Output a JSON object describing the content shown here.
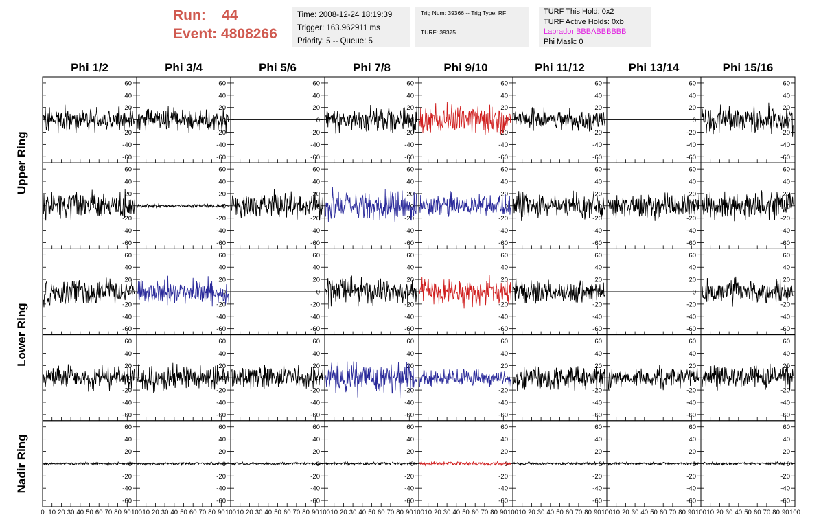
{
  "header": {
    "run_label": "Run:",
    "run_value": "44",
    "event_label": "Event:",
    "event_value": "4808266",
    "time": "Time: 2008-12-24 18:19:39",
    "trigger": "Trigger: 163.962911 ms",
    "priority": "Priority: 5 -- Queue: 5",
    "trig_num": "Trig Num: 39366 -- Trig Type: RF",
    "turf": "TURF: 39375",
    "turf_hold": "TURF This Hold: 0x2",
    "turf_active": "TURF Active Holds: 0xb",
    "labrador": "Labrador BBBABBBBBB",
    "phi_mask": "Phi Mask: 0"
  },
  "colors": {
    "header_text": "#d05a50",
    "labrador": "#e020e0",
    "trace_default": "#000000",
    "trace_red": "#d02020",
    "trace_blue": "#2a2a9a",
    "info_box_bg": "#efefef"
  },
  "chart_data": {
    "type": "line",
    "columns": [
      "Phi 1/2",
      "Phi 3/4",
      "Phi 5/6",
      "Phi 7/8",
      "Phi 9/10",
      "Phi 11/12",
      "Phi 13/14",
      "Phi 15/16"
    ],
    "rows": [
      "Upper Ring",
      "Upper Ring",
      "Lower Ring",
      "Lower Ring",
      "Nadir Ring"
    ],
    "row_labels": [
      "Upper Ring",
      "Lower Ring",
      "Nadir Ring"
    ],
    "xlim": [
      0,
      100
    ],
    "ylim": [
      -70,
      70
    ],
    "x_ticks": [
      0,
      10,
      20,
      30,
      40,
      50,
      60,
      70,
      80,
      90,
      100
    ],
    "y_ticks": [
      -60,
      -40,
      -20,
      0,
      20,
      40,
      60
    ],
    "grid": false,
    "panels": [
      [
        {
          "color": "black",
          "amp": 14
        },
        {
          "color": "black",
          "amp": 13
        },
        {
          "color": "black",
          "amp": 0
        },
        {
          "color": "black",
          "amp": 13
        },
        {
          "color": "red",
          "amp": 16
        },
        {
          "color": "black",
          "amp": 12
        },
        {
          "color": "black",
          "amp": 0
        },
        {
          "color": "black",
          "amp": 15
        }
      ],
      [
        {
          "color": "black",
          "amp": 15
        },
        {
          "color": "black",
          "amp": 2
        },
        {
          "color": "black",
          "amp": 15
        },
        {
          "color": "blue",
          "amp": 17
        },
        {
          "color": "blue",
          "amp": 12
        },
        {
          "color": "black",
          "amp": 15
        },
        {
          "color": "black",
          "amp": 13
        },
        {
          "color": "black",
          "amp": 15
        }
      ],
      [
        {
          "color": "black",
          "amp": 14
        },
        {
          "color": "blue",
          "amp": 14
        },
        {
          "color": "black",
          "amp": 0
        },
        {
          "color": "black",
          "amp": 15
        },
        {
          "color": "red",
          "amp": 15
        },
        {
          "color": "black",
          "amp": 12
        },
        {
          "color": "black",
          "amp": 0
        },
        {
          "color": "black",
          "amp": 13
        }
      ],
      [
        {
          "color": "black",
          "amp": 13
        },
        {
          "color": "black",
          "amp": 14
        },
        {
          "color": "black",
          "amp": 13
        },
        {
          "color": "blue",
          "amp": 17
        },
        {
          "color": "blue",
          "amp": 9
        },
        {
          "color": "black",
          "amp": 14
        },
        {
          "color": "black",
          "amp": 11
        },
        {
          "color": "black",
          "amp": 15
        }
      ],
      [
        {
          "color": "black",
          "amp": 1.5
        },
        {
          "color": "black",
          "amp": 1.5
        },
        {
          "color": "black",
          "amp": 1.5
        },
        {
          "color": "black",
          "amp": 1.5
        },
        {
          "color": "red",
          "amp": 2
        },
        {
          "color": "black",
          "amp": 1.5
        },
        {
          "color": "black",
          "amp": 1.5
        },
        {
          "color": "black",
          "amp": 1.5
        }
      ]
    ]
  }
}
